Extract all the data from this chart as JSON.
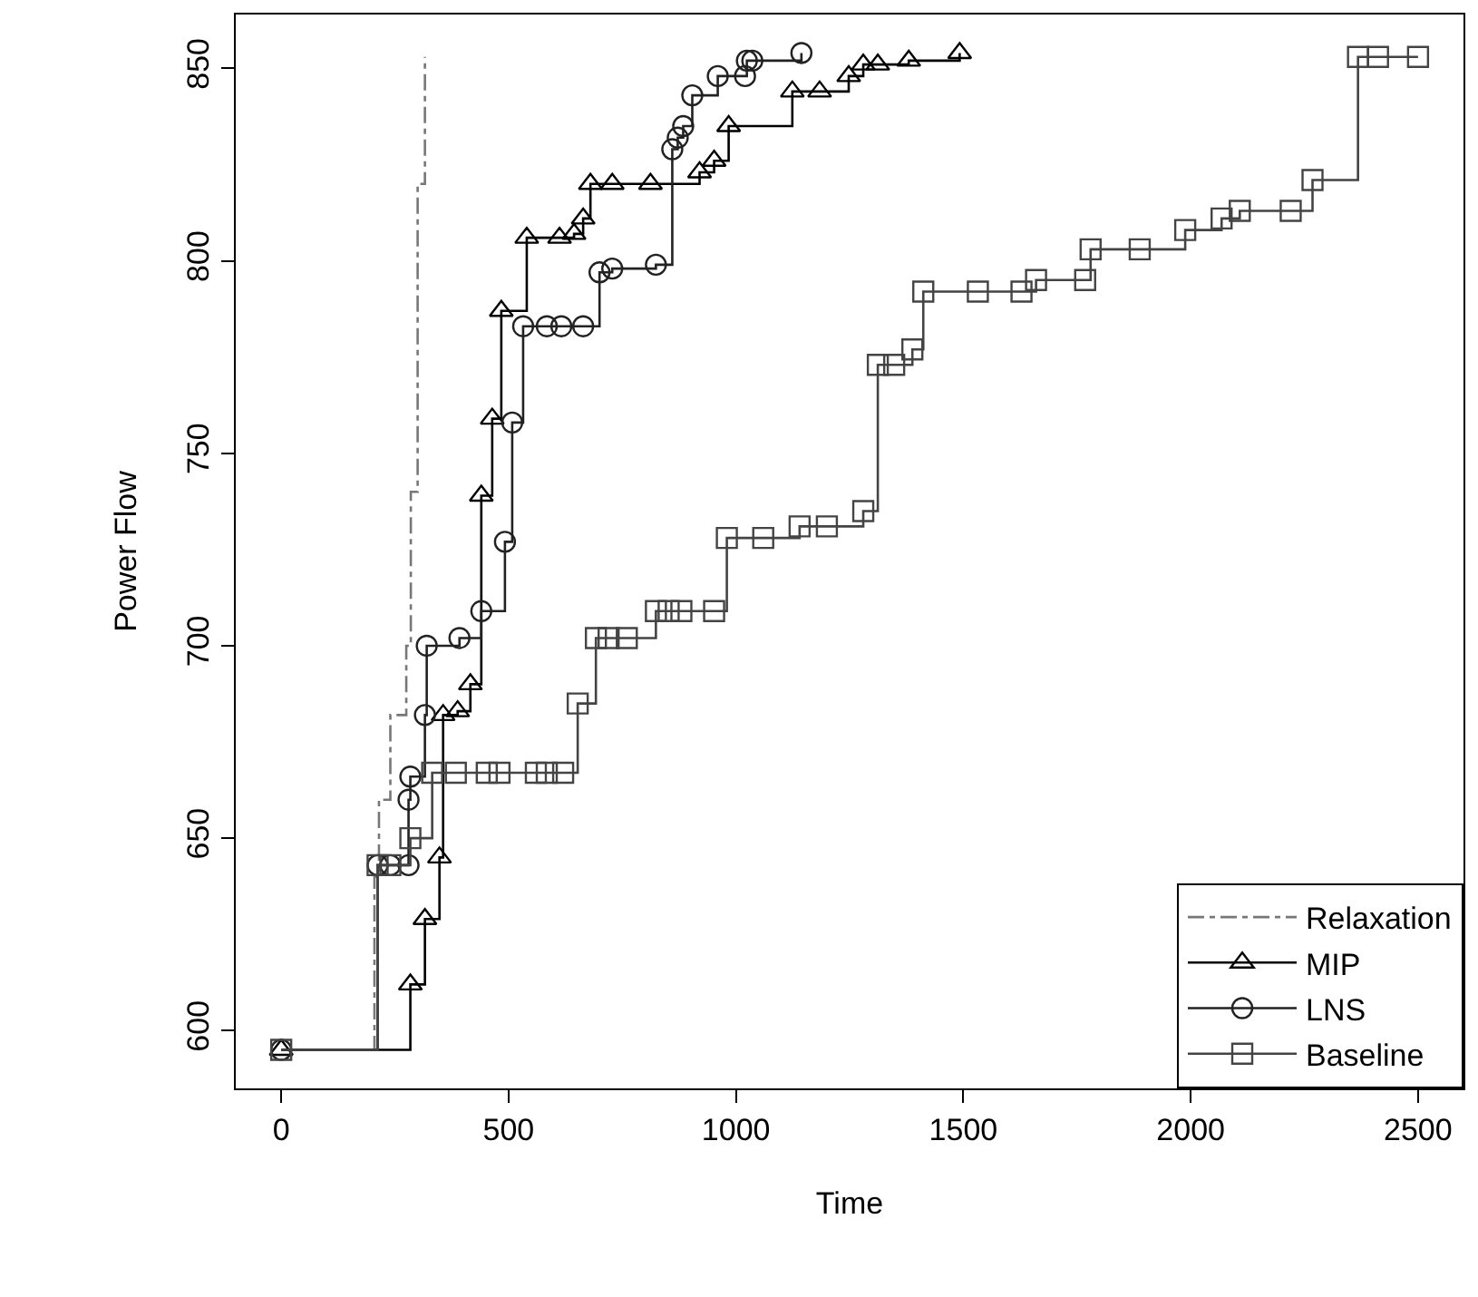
{
  "chart_data": {
    "type": "step",
    "xlabel": "Time",
    "ylabel": "Power Flow",
    "xlim": [
      -100,
      2600
    ],
    "ylim": [
      585,
      864
    ],
    "xticks": [
      0,
      500,
      1000,
      1500,
      2000,
      2500
    ],
    "yticks": [
      600,
      650,
      700,
      750,
      800,
      850
    ],
    "legend": "bottom right",
    "series": [
      {
        "name": "Relaxation",
        "color": "#777777",
        "marker": "none",
        "line_style": "dashdot",
        "x": [
          200,
          205,
          215,
          240,
          275,
          285,
          300,
          316
        ],
        "values": [
          595,
          640,
          660,
          682,
          700,
          740,
          820,
          853
        ]
      },
      {
        "name": "MIP",
        "color": "#000000",
        "marker": "triangle",
        "line_style": "solid",
        "x": [
          0,
          284,
          316,
          348,
          356,
          388,
          416,
          440,
          464,
          484,
          540,
          612,
          644,
          664,
          680,
          728,
          812,
          920,
          952,
          984,
          1124,
          1184,
          1248,
          1280,
          1312,
          1380,
          1492
        ],
        "values": [
          595,
          612,
          629,
          645,
          682,
          683,
          690,
          739,
          759,
          787,
          806,
          806,
          807,
          811,
          820,
          820,
          820,
          823,
          826,
          835,
          844,
          844,
          848,
          851,
          851,
          852,
          854
        ]
      },
      {
        "name": "LNS",
        "color": "#222222",
        "marker": "circle",
        "line_style": "solid",
        "x": [
          0,
          212,
          240,
          280,
          280,
          284,
          316,
          320,
          392,
          440,
          492,
          508,
          532,
          584,
          616,
          664,
          700,
          728,
          824,
          860,
          872,
          884,
          904,
          960,
          1020,
          1024,
          1036,
          1144
        ],
        "values": [
          595,
          643,
          643,
          643,
          660,
          666,
          682,
          700,
          702,
          709,
          727,
          758,
          783,
          783,
          783,
          783,
          797,
          798,
          799,
          829,
          832,
          835,
          843,
          848,
          848,
          852,
          852,
          854
        ]
      },
      {
        "name": "Baseline",
        "color": "#444444",
        "marker": "square",
        "line_style": "solid",
        "x": [
          0,
          212,
          240,
          284,
          332,
          384,
          452,
          480,
          560,
          584,
          620,
          652,
          692,
          720,
          760,
          824,
          852,
          880,
          952,
          980,
          1060,
          1140,
          1200,
          1280,
          1312,
          1348,
          1388,
          1412,
          1532,
          1628,
          1660,
          1768,
          1780,
          1888,
          1988,
          2068,
          2108,
          2220,
          2268,
          2368,
          2412,
          2500
        ],
        "values": [
          595,
          643,
          643,
          650,
          667,
          667,
          667,
          667,
          667,
          667,
          667,
          685,
          702,
          702,
          702,
          709,
          709,
          709,
          709,
          728,
          728,
          731,
          731,
          735,
          773,
          773,
          777,
          792,
          792,
          792,
          795,
          795,
          803,
          803,
          808,
          811,
          813,
          813,
          821,
          853,
          853,
          853
        ]
      }
    ]
  }
}
